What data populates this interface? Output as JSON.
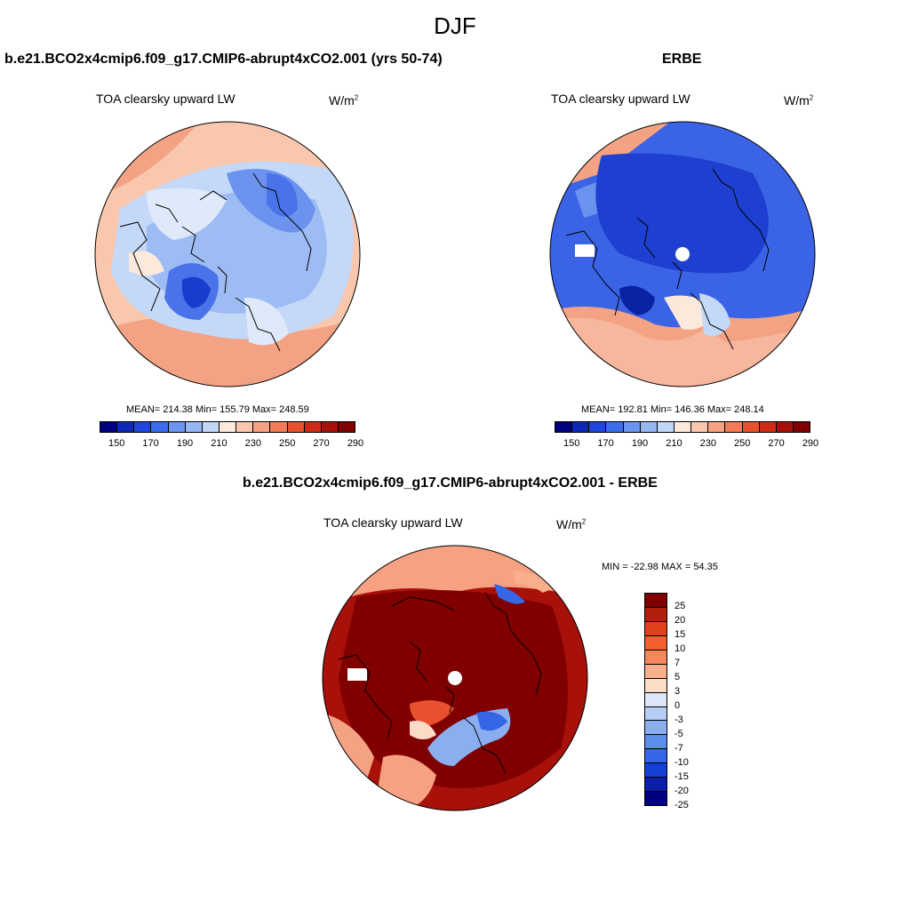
{
  "title": "DJF",
  "panel1": {
    "title": "b.e21.BCO2x4cmip6.f09_g17.CMIP6-abrupt4xCO2.001 (yrs 50-74)",
    "field": "TOA clearsky upward LW",
    "units_base": "W/m",
    "units_exp": "2",
    "stats": "MEAN= 214.38  Min= 155.79  Max= 248.59"
  },
  "panel2": {
    "title": "ERBE",
    "field": "TOA clearsky upward LW",
    "units_base": "W/m",
    "units_exp": "2",
    "stats": "MEAN= 192.81  Min= 146.36  Max= 248.14"
  },
  "panel3": {
    "title": "b.e21.BCO2x4cmip6.f09_g17.CMIP6-abrupt4xCO2.001 - ERBE",
    "field": "TOA clearsky upward LW",
    "units_base": "W/m",
    "units_exp": "2",
    "stats": "MIN = -22.98 MAX =  54.35"
  },
  "abs_colorbar": {
    "colors": [
      "#00007f",
      "#0a28b4",
      "#1e46dc",
      "#3a6cf0",
      "#6a94f0",
      "#96b6f4",
      "#c2d6f8",
      "#fbe9dc",
      "#f9c6ae",
      "#f6a182",
      "#f27a55",
      "#e9512e",
      "#d02a14",
      "#a8100a",
      "#800000"
    ],
    "ticks": [
      "150",
      "170",
      "190",
      "210",
      "230",
      "250",
      "270",
      "290"
    ]
  },
  "diff_colorbar": {
    "colors": [
      "#800000",
      "#b0200d",
      "#e0401c",
      "#f0602e",
      "#f6875c",
      "#f9ae8c",
      "#fcdcc6",
      "#dce8f8",
      "#b6cdf4",
      "#8aaef0",
      "#5e8cec",
      "#3466e6",
      "#1640d4",
      "#0a1eaa",
      "#000080"
    ],
    "labels": [
      "25",
      "20",
      "15",
      "10",
      "7",
      "5",
      "3",
      "0",
      "-3",
      "-5",
      "-7",
      "-10",
      "-15",
      "-20",
      "-25"
    ]
  }
}
